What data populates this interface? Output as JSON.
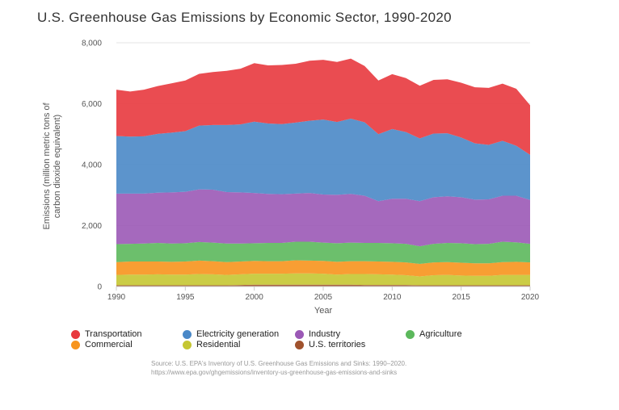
{
  "title": "U.S. Greenhouse Gas Emissions by Economic Sector, 1990-2020",
  "source_line1": "Source: U.S. EPA's Inventory of U.S. Greenhouse Gas Emissions and Sinks: 1990–2020.",
  "source_line2": "https://www.epa.gov/ghgemissions/inventory-us-greenhouse-gas-emissions-and-sinks",
  "chart_data": {
    "type": "area",
    "stacked": true,
    "xlabel": "Year",
    "ylabel_line1": "Emissions (million metric tons of",
    "ylabel_line2": "carbon dioxide equivalent)",
    "xlim": [
      1990,
      2020
    ],
    "ylim": [
      0,
      8000
    ],
    "x_ticks": [
      1990,
      1995,
      2000,
      2005,
      2010,
      2015,
      2020
    ],
    "y_ticks": [
      0,
      2000,
      4000,
      6000,
      8000
    ],
    "y_tick_labels": [
      "0",
      "2,000",
      "4,000",
      "6,000",
      "8,000"
    ],
    "grid": true,
    "legend_position": "bottom",
    "x": [
      1990,
      1991,
      1992,
      1993,
      1994,
      1995,
      1996,
      1997,
      1998,
      1999,
      2000,
      2001,
      2002,
      2003,
      2004,
      2005,
      2006,
      2007,
      2008,
      2009,
      2010,
      2011,
      2012,
      2013,
      2014,
      2015,
      2016,
      2017,
      2018,
      2019,
      2020
    ],
    "series": [
      {
        "name": "U.S. territories",
        "color": "#a0522d",
        "values": [
          40,
          40,
          40,
          40,
          40,
          40,
          40,
          40,
          40,
          50,
          60,
          60,
          60,
          60,
          60,
          60,
          60,
          60,
          50,
          50,
          50,
          50,
          40,
          40,
          40,
          40,
          40,
          40,
          40,
          40,
          40
        ]
      },
      {
        "name": "Residential",
        "color": "#c5c632",
        "values": [
          340,
          350,
          350,
          360,
          350,
          350,
          370,
          360,
          340,
          350,
          360,
          360,
          360,
          370,
          370,
          360,
          330,
          350,
          360,
          350,
          340,
          320,
          290,
          330,
          340,
          320,
          310,
          310,
          340,
          340,
          340
        ]
      },
      {
        "name": "Commercial",
        "color": "#f7941d",
        "values": [
          420,
          430,
          430,
          420,
          420,
          430,
          440,
          430,
          420,
          420,
          420,
          410,
          410,
          430,
          420,
          420,
          420,
          420,
          420,
          420,
          420,
          420,
          410,
          420,
          420,
          420,
          410,
          410,
          420,
          430,
          410
        ]
      },
      {
        "name": "Agriculture",
        "color": "#5cb85c",
        "values": [
          590,
          580,
          590,
          610,
          600,
          600,
          610,
          610,
          610,
          590,
          580,
          600,
          600,
          610,
          620,
          600,
          610,
          610,
          600,
          610,
          610,
          610,
          580,
          610,
          630,
          640,
          630,
          640,
          670,
          640,
          610
        ]
      },
      {
        "name": "Industry",
        "color": "#9b59b6",
        "values": [
          1660,
          1650,
          1640,
          1650,
          1680,
          1690,
          1730,
          1740,
          1690,
          1680,
          1650,
          1610,
          1600,
          1580,
          1600,
          1580,
          1590,
          1600,
          1550,
          1370,
          1460,
          1480,
          1480,
          1530,
          1530,
          1510,
          1460,
          1460,
          1510,
          1530,
          1440
        ]
      },
      {
        "name": "Electricity generation",
        "color": "#4a88c7",
        "values": [
          1890,
          1870,
          1880,
          1930,
          1960,
          1990,
          2090,
          2120,
          2200,
          2230,
          2340,
          2310,
          2300,
          2330,
          2370,
          2460,
          2390,
          2470,
          2410,
          2200,
          2290,
          2190,
          2060,
          2090,
          2070,
          1960,
          1850,
          1790,
          1800,
          1640,
          1480
        ]
      },
      {
        "name": "Transportation",
        "color": "#e8393e",
        "values": [
          1520,
          1480,
          1530,
          1570,
          1620,
          1660,
          1700,
          1740,
          1780,
          1830,
          1920,
          1910,
          1940,
          1930,
          1970,
          1960,
          1970,
          1970,
          1850,
          1760,
          1800,
          1770,
          1730,
          1760,
          1770,
          1800,
          1840,
          1870,
          1880,
          1870,
          1630
        ]
      }
    ]
  },
  "legend": [
    {
      "name": "Transportation",
      "color": "#e8393e"
    },
    {
      "name": "Electricity generation",
      "color": "#4a88c7"
    },
    {
      "name": "Industry",
      "color": "#9b59b6"
    },
    {
      "name": "Agriculture",
      "color": "#5cb85c"
    },
    {
      "name": "Commercial",
      "color": "#f7941d"
    },
    {
      "name": "Residential",
      "color": "#c5c632"
    },
    {
      "name": "U.S. territories",
      "color": "#a0522d"
    }
  ]
}
